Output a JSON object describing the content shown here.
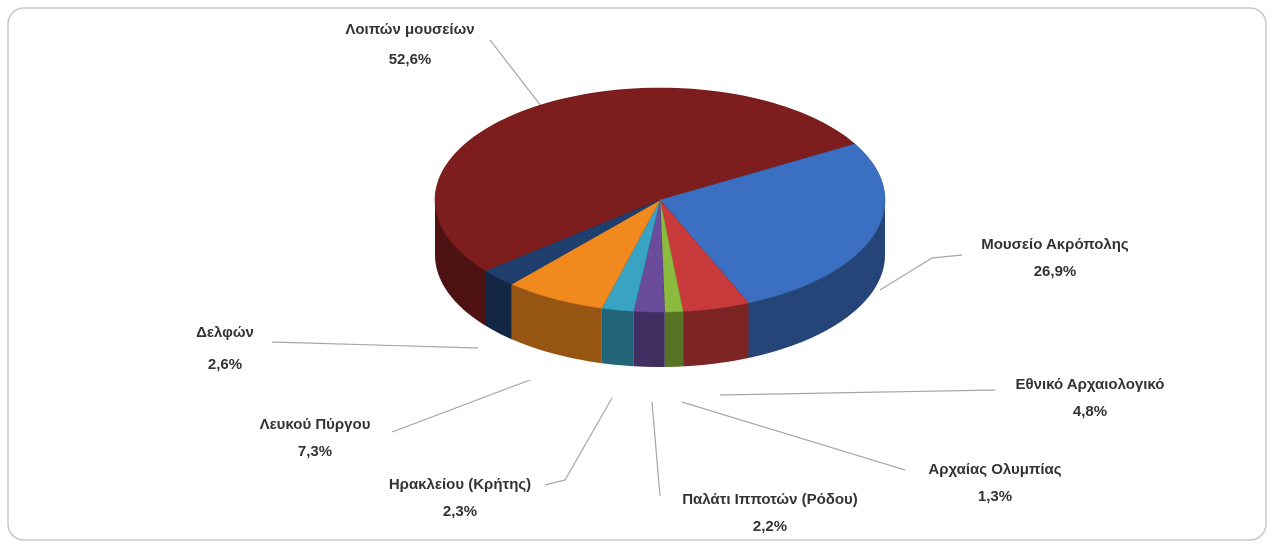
{
  "chart_data": {
    "type": "pie",
    "categories": [
      "Λοιπών μουσείων",
      "Μουσείο Ακρόπολης",
      "Εθνικό Αρχαιολογικό",
      "Αρχαίας Ολυμπίας",
      "Παλάτι Ιπποτών (Ρόδου)",
      "Ηρακλείου (Κρήτης)",
      "Λευκού Πύργου",
      "Δελφών"
    ],
    "values": [
      52.6,
      26.9,
      4.8,
      1.3,
      2.2,
      2.3,
      7.3,
      2.6
    ],
    "value_labels": [
      "52,6%",
      "26,9%",
      "4,8%",
      "1,3%",
      "2,2%",
      "2,3%",
      "7,3%",
      "2,6%"
    ],
    "colors": [
      "#7e1d1d",
      "#3b6fc2",
      "#c93a3c",
      "#8cba3c",
      "#6b4b9c",
      "#38a3c2",
      "#f2891f",
      "#1f3f6e"
    ]
  }
}
